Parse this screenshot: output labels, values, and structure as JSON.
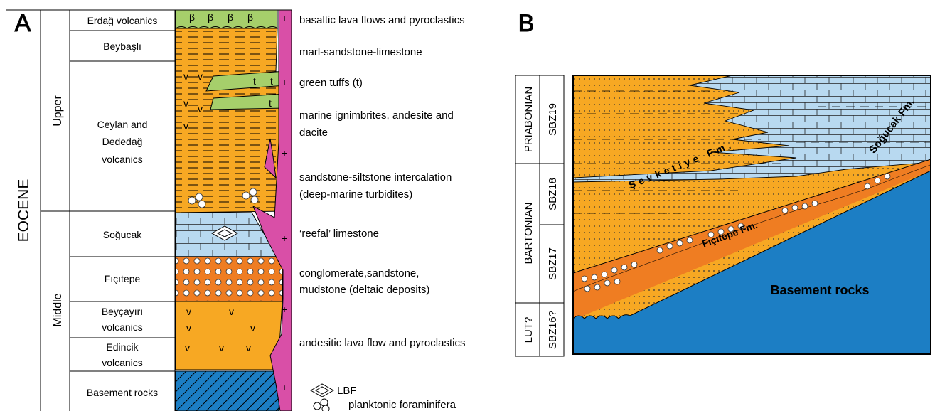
{
  "panel_a": {
    "letter": "A",
    "epoch": "EOCENE",
    "subepochs": [
      "Upper",
      "Middle"
    ],
    "units": [
      {
        "name": "Erdağ volcanics",
        "description": "basaltic lava flows and pyroclastics"
      },
      {
        "name": "Beybaşlı",
        "description": "marl-sandstone-limestone"
      },
      {
        "name_lines": [
          "Ceylan and",
          "Dededağ",
          "volcanics"
        ]
      },
      {
        "name": "Soğucak",
        "description": "‘reefal’ limestone"
      },
      {
        "name": "Fıçıtepe",
        "description_lines": [
          "conglomerate,sandstone,",
          "mudstone (deltaic deposits)"
        ]
      },
      {
        "name_lines": [
          "Beyçayırı",
          "volcanics"
        ]
      },
      {
        "name_lines": [
          "Edincik",
          "volcanics"
        ],
        "description": "andesitic lava flow and pyroclastics"
      },
      {
        "name": "Basement rocks"
      }
    ],
    "ceylan_descriptions": {
      "tuffs": "green tuffs (t)",
      "ignimbrites": [
        "marine ignimbrites, andesite and",
        "dacite"
      ],
      "turbidites": [
        "sandstone-siltstone intercalation",
        "(deep-marine turbidites)"
      ]
    },
    "symbols": {
      "basalt": "β",
      "andesite": "v",
      "tuff": "t",
      "granite": "+"
    },
    "legend": [
      {
        "symbol": "lbf-icon",
        "label": "LBF"
      },
      {
        "symbol": "planktonic-foraminifera-icon",
        "label": "planktonic foraminifera"
      }
    ]
  },
  "panel_b": {
    "letter": "B",
    "stages": [
      "PRIABONIAN",
      "BARTONIAN",
      "LUT?"
    ],
    "zones": [
      "SBZ19",
      "SBZ18",
      "SBZ17",
      "SBZ16?"
    ],
    "formations": {
      "sevketiye": "Şevketiye Fm.",
      "sogucak": "Soğucak Fm.",
      "ficitepe": "Fıçıtepe Fm."
    },
    "basement": "Basement rocks"
  },
  "colors": {
    "orange": "#f7a823",
    "dark_orange": "#ef7d22",
    "green": "#a6cf6b",
    "light_blue": "#b8d9f0",
    "blue": "#1c7ec4",
    "magenta": "#d94fa7",
    "line": "#000000"
  }
}
